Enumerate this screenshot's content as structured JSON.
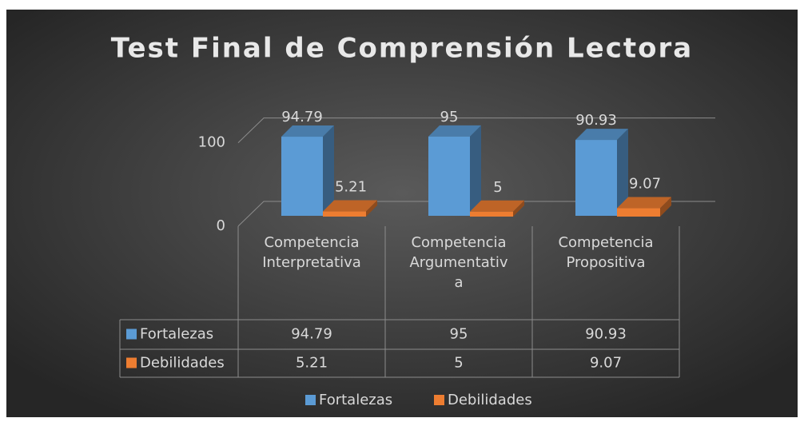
{
  "chart_data": {
    "type": "bar3d",
    "title": "Test Final de Comprensión Lectora",
    "categories": [
      "Competencia Interpretativa",
      "Competencia Argumentativa",
      "Competencia Propositiva"
    ],
    "series": [
      {
        "name": "Fortalezas",
        "color": "#5b9bd5",
        "values": [
          94.79,
          95,
          90.93
        ]
      },
      {
        "name": "Debilidades",
        "color": "#ed7d31",
        "values": [
          5.21,
          5,
          9.07
        ]
      }
    ],
    "ylim": [
      0,
      100
    ],
    "yticks": [
      0,
      100
    ],
    "grid": true,
    "data_table": true,
    "legend": "bottom"
  }
}
